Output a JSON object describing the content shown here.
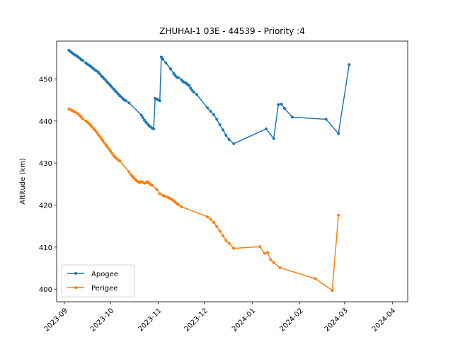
{
  "chart_data": {
    "type": "line",
    "title": "ZHUHAI-1 03E - 44539 - Priority :4",
    "xlabel": "",
    "ylabel": "Altitude (km)",
    "xlim": [
      "2023-08-27",
      "2024-04-11"
    ],
    "ylim": [
      397,
      459
    ],
    "yticks": [
      400,
      410,
      420,
      430,
      440,
      450
    ],
    "xticks": [
      "2023-09",
      "2023-10",
      "2023-11",
      "2023-12",
      "2024-01",
      "2024-02",
      "2024-03",
      "2024-04"
    ],
    "grid": false,
    "legend": "lower-left",
    "series": [
      {
        "name": "Apogee",
        "color": "#1f77b4",
        "points": [
          [
            "2023-09-04",
            456.8
          ],
          [
            "2023-09-05",
            456.5
          ],
          [
            "2023-09-06",
            456.2
          ],
          [
            "2023-09-07",
            455.9
          ],
          [
            "2023-09-08",
            455.7
          ],
          [
            "2023-09-09",
            455.5
          ],
          [
            "2023-09-10",
            455.2
          ],
          [
            "2023-09-11",
            454.9
          ],
          [
            "2023-09-12",
            454.6
          ],
          [
            "2023-09-13",
            454.4
          ],
          [
            "2023-09-15",
            453.8
          ],
          [
            "2023-09-16",
            453.5
          ],
          [
            "2023-09-17",
            453.3
          ],
          [
            "2023-09-18",
            453.0
          ],
          [
            "2023-09-19",
            452.7
          ],
          [
            "2023-09-20",
            452.4
          ],
          [
            "2023-09-21",
            452.1
          ],
          [
            "2023-09-22",
            451.9
          ],
          [
            "2023-09-23",
            451.6
          ],
          [
            "2023-09-24",
            451.2
          ],
          [
            "2023-09-25",
            450.7
          ],
          [
            "2023-09-26",
            450.4
          ],
          [
            "2023-09-27",
            450.0
          ],
          [
            "2023-09-28",
            449.6
          ],
          [
            "2023-09-29",
            449.2
          ],
          [
            "2023-09-30",
            448.8
          ],
          [
            "2023-10-01",
            448.4
          ],
          [
            "2023-10-02",
            448.0
          ],
          [
            "2023-10-03",
            447.6
          ],
          [
            "2023-10-04",
            447.2
          ],
          [
            "2023-10-05",
            446.8
          ],
          [
            "2023-10-06",
            446.4
          ],
          [
            "2023-10-07",
            446.0
          ],
          [
            "2023-10-08",
            445.7
          ],
          [
            "2023-10-09",
            445.3
          ],
          [
            "2023-10-10",
            445.0
          ],
          [
            "2023-10-11",
            444.8
          ],
          [
            "2023-10-13",
            444.3
          ],
          [
            "2023-10-21",
            441.4
          ],
          [
            "2023-10-22",
            440.8
          ],
          [
            "2023-10-23",
            440.2
          ],
          [
            "2023-10-24",
            439.7
          ],
          [
            "2023-10-25",
            439.3
          ],
          [
            "2023-10-26",
            438.9
          ],
          [
            "2023-10-27",
            438.6
          ],
          [
            "2023-10-28",
            438.3
          ],
          [
            "2023-10-29",
            438.1
          ],
          [
            "2023-10-30",
            445.4
          ],
          [
            "2023-10-31",
            445.2
          ],
          [
            "2023-11-01",
            445.0
          ],
          [
            "2023-11-02",
            444.8
          ],
          [
            "2023-11-03",
            455.2
          ],
          [
            "2023-11-04",
            454.7
          ],
          [
            "2023-11-06",
            453.8
          ],
          [
            "2023-11-09",
            452.4
          ],
          [
            "2023-11-11",
            451.3
          ],
          [
            "2023-11-12",
            450.8
          ],
          [
            "2023-11-13",
            450.4
          ],
          [
            "2023-11-14",
            450.3
          ],
          [
            "2023-11-16",
            449.8
          ],
          [
            "2023-11-17",
            449.4
          ],
          [
            "2023-11-18",
            449.2
          ],
          [
            "2023-11-19",
            449.0
          ],
          [
            "2023-11-20",
            448.7
          ],
          [
            "2023-11-21",
            448.4
          ],
          [
            "2023-11-22",
            447.8
          ],
          [
            "2023-11-23",
            447.3
          ],
          [
            "2023-11-24",
            446.9
          ],
          [
            "2023-11-26",
            446.3
          ],
          [
            "2023-12-03",
            443.1
          ],
          [
            "2023-12-05",
            442.3
          ],
          [
            "2023-12-07",
            441.5
          ],
          [
            "2023-12-09",
            440.4
          ],
          [
            "2023-12-11",
            439.1
          ],
          [
            "2023-12-13",
            437.9
          ],
          [
            "2023-12-15",
            436.6
          ],
          [
            "2023-12-17",
            435.6
          ],
          [
            "2023-12-20",
            434.6
          ],
          [
            "2024-01-10",
            438.1
          ],
          [
            "2024-01-15",
            435.8
          ],
          [
            "2024-01-18",
            443.9
          ],
          [
            "2024-01-20",
            444.0
          ],
          [
            "2024-01-22",
            443.0
          ],
          [
            "2024-01-27",
            440.9
          ],
          [
            "2024-02-18",
            440.4
          ],
          [
            "2024-02-26",
            437.0
          ],
          [
            "2024-03-04",
            453.4
          ]
        ]
      },
      {
        "name": "Perigee",
        "color": "#ff7f0e",
        "points": [
          [
            "2023-09-04",
            442.8
          ],
          [
            "2023-09-05",
            442.7
          ],
          [
            "2023-09-06",
            442.5
          ],
          [
            "2023-09-07",
            442.3
          ],
          [
            "2023-09-08",
            442.1
          ],
          [
            "2023-09-09",
            441.9
          ],
          [
            "2023-09-10",
            441.6
          ],
          [
            "2023-09-11",
            441.3
          ],
          [
            "2023-09-12",
            440.9
          ],
          [
            "2023-09-13",
            440.5
          ],
          [
            "2023-09-15",
            440.0
          ],
          [
            "2023-09-16",
            439.7
          ],
          [
            "2023-09-17",
            439.4
          ],
          [
            "2023-09-18",
            439.0
          ],
          [
            "2023-09-19",
            438.6
          ],
          [
            "2023-09-20",
            438.2
          ],
          [
            "2023-09-21",
            437.8
          ],
          [
            "2023-09-22",
            437.3
          ],
          [
            "2023-09-23",
            436.8
          ],
          [
            "2023-09-24",
            436.3
          ],
          [
            "2023-09-25",
            435.8
          ],
          [
            "2023-09-26",
            435.3
          ],
          [
            "2023-09-27",
            434.8
          ],
          [
            "2023-09-28",
            434.3
          ],
          [
            "2023-09-29",
            433.8
          ],
          [
            "2023-09-30",
            433.3
          ],
          [
            "2023-10-01",
            432.8
          ],
          [
            "2023-10-02",
            432.3
          ],
          [
            "2023-10-03",
            431.8
          ],
          [
            "2023-10-04",
            431.4
          ],
          [
            "2023-10-05",
            431.1
          ],
          [
            "2023-10-06",
            430.7
          ],
          [
            "2023-10-07",
            430.5
          ],
          [
            "2023-10-13",
            427.9
          ],
          [
            "2023-10-14",
            427.3
          ],
          [
            "2023-10-15",
            426.9
          ],
          [
            "2023-10-16",
            426.5
          ],
          [
            "2023-10-17",
            426.1
          ],
          [
            "2023-10-18",
            425.8
          ],
          [
            "2023-10-19",
            425.5
          ],
          [
            "2023-10-20",
            425.3
          ],
          [
            "2023-10-21",
            425.6
          ],
          [
            "2023-10-22",
            425.4
          ],
          [
            "2023-10-23",
            425.2
          ],
          [
            "2023-10-24",
            425.3
          ],
          [
            "2023-10-25",
            425.6
          ],
          [
            "2023-10-26",
            425.2
          ],
          [
            "2023-10-27",
            424.9
          ],
          [
            "2023-10-28",
            424.7
          ],
          [
            "2023-10-31",
            423.7
          ],
          [
            "2023-11-02",
            422.7
          ],
          [
            "2023-11-04",
            422.3
          ],
          [
            "2023-11-05",
            422.1
          ],
          [
            "2023-11-07",
            421.9
          ],
          [
            "2023-11-08",
            421.7
          ],
          [
            "2023-11-09",
            421.5
          ],
          [
            "2023-11-10",
            421.3
          ],
          [
            "2023-11-11",
            421.0
          ],
          [
            "2023-11-12",
            420.7
          ],
          [
            "2023-11-13",
            420.4
          ],
          [
            "2023-11-14",
            420.1
          ],
          [
            "2023-11-16",
            419.6
          ],
          [
            "2023-12-03",
            417.2
          ],
          [
            "2023-12-05",
            416.6
          ],
          [
            "2023-12-07",
            415.9
          ],
          [
            "2023-12-09",
            414.9
          ],
          [
            "2023-12-11",
            413.8
          ],
          [
            "2023-12-13",
            412.7
          ],
          [
            "2023-12-15",
            411.6
          ],
          [
            "2023-12-17",
            410.9
          ],
          [
            "2023-12-20",
            409.7
          ],
          [
            "2024-01-06",
            410.1
          ],
          [
            "2024-01-09",
            408.5
          ],
          [
            "2024-01-11",
            408.7
          ],
          [
            "2024-01-13",
            407.0
          ],
          [
            "2024-01-15",
            406.3
          ],
          [
            "2024-01-19",
            405.1
          ],
          [
            "2024-02-11",
            402.5
          ],
          [
            "2024-02-22",
            399.7
          ],
          [
            "2024-02-26",
            417.6
          ]
        ]
      }
    ]
  }
}
